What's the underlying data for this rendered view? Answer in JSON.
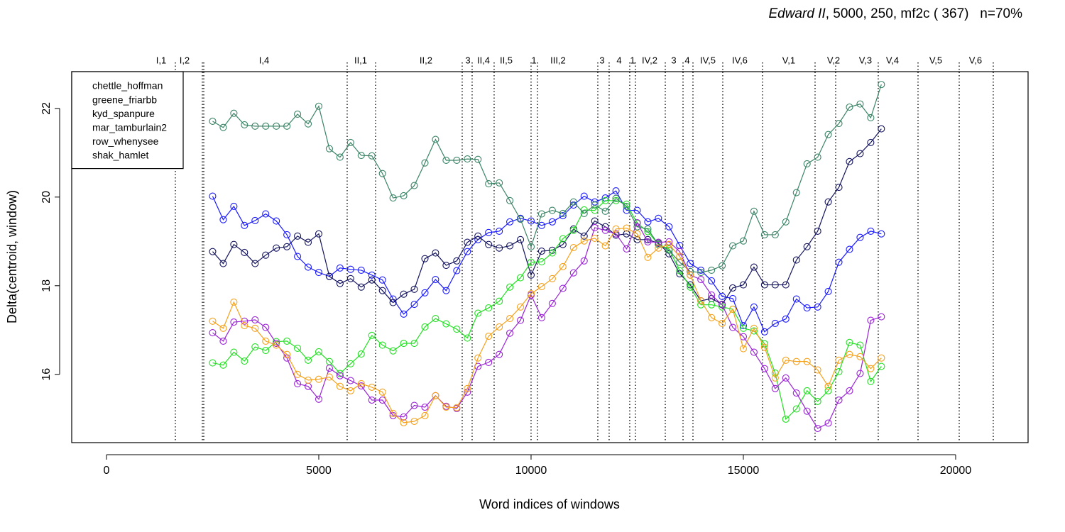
{
  "chart_data": {
    "type": "line",
    "title_italic": "Edward II",
    "title": ", 5000, 250, mf2c ( 367)   n=70%",
    "xlabel": "Word indices of windows",
    "ylabel": "Delta(centroid, window)",
    "xlim": [
      -819,
      21706
    ],
    "ylim": [
      14.46,
      22.83
    ],
    "xticks": [
      0,
      5000,
      10000,
      15000,
      20000
    ],
    "yticks": [
      16,
      18,
      20,
      22
    ],
    "legend": "topleft",
    "markers": "open-circle",
    "x": [
      2500,
      2750,
      3000,
      3250,
      3500,
      3750,
      4000,
      4250,
      4500,
      4750,
      5000,
      5250,
      5500,
      5750,
      6000,
      6250,
      6500,
      6750,
      7000,
      7250,
      7500,
      7750,
      8000,
      8250,
      8500,
      8750,
      9000,
      9250,
      9500,
      9750,
      10000,
      10250,
      10500,
      10750,
      11000,
      11250,
      11500,
      11750,
      12000,
      12250,
      12500,
      12750,
      13000,
      13250,
      13500,
      13750,
      14000,
      14250,
      14500,
      14750,
      15000,
      15250,
      15500,
      15750,
      16000,
      16250,
      16500,
      16750,
      17000,
      17250,
      17500,
      17750,
      18000,
      18250
    ],
    "series": [
      {
        "name": "chettle_hoffman",
        "color": "#1a1aff",
        "values": [
          20.02,
          19.49,
          19.79,
          19.36,
          19.47,
          19.62,
          19.46,
          19.15,
          18.66,
          18.42,
          18.3,
          18.21,
          18.4,
          18.37,
          18.35,
          18.24,
          18.13,
          17.7,
          17.36,
          17.58,
          17.84,
          18.14,
          17.89,
          18.34,
          18.77,
          19.04,
          19.2,
          19.23,
          19.44,
          19.52,
          19.46,
          19.36,
          19.44,
          19.58,
          19.82,
          20.02,
          19.89,
          19.98,
          20.14,
          19.7,
          19.7,
          19.44,
          19.52,
          19.33,
          18.91,
          18.5,
          18.35,
          18.11,
          17.76,
          17.71,
          17.1,
          17.52,
          16.96,
          17.15,
          17.25,
          17.7,
          17.5,
          17.52,
          17.87,
          18.53,
          18.82,
          19.09,
          19.23,
          19.17
        ]
      },
      {
        "name": "greene_friarbb",
        "color": "#14145e",
        "values": [
          18.77,
          18.5,
          18.93,
          18.75,
          18.5,
          18.69,
          18.85,
          18.88,
          19.12,
          18.98,
          19.17,
          18.21,
          18.05,
          18.16,
          17.97,
          18.13,
          17.89,
          17.62,
          17.81,
          17.92,
          18.61,
          18.74,
          18.46,
          18.56,
          18.98,
          19.12,
          18.93,
          18.85,
          18.9,
          19.04,
          18.24,
          18.78,
          18.8,
          18.93,
          19.28,
          19.12,
          19.46,
          19.33,
          19.14,
          19.17,
          19.04,
          19.04,
          18.96,
          18.72,
          18.27,
          18.02,
          17.66,
          17.71,
          17.58,
          17.95,
          18.02,
          18.42,
          18.02,
          18.02,
          18.02,
          18.58,
          18.88,
          19.23,
          19.89,
          20.22,
          20.8,
          20.98,
          21.23,
          21.54
        ]
      },
      {
        "name": "kyd_spanpure",
        "color": "#22e022",
        "values": [
          16.26,
          16.21,
          16.5,
          16.3,
          16.62,
          16.54,
          16.74,
          16.75,
          16.59,
          16.32,
          16.51,
          16.29,
          16.02,
          16.24,
          16.46,
          16.88,
          16.66,
          16.53,
          16.7,
          16.7,
          17.07,
          17.26,
          17.14,
          17.02,
          16.82,
          17.38,
          17.5,
          17.65,
          17.97,
          18.18,
          18.53,
          18.54,
          18.74,
          19.06,
          19.25,
          19.71,
          19.7,
          19.92,
          19.92,
          19.84,
          19.41,
          19.22,
          18.93,
          18.83,
          18.34,
          17.97,
          17.57,
          17.57,
          17.52,
          17.47,
          17.04,
          16.98,
          16.69,
          16.03,
          14.99,
          15.22,
          15.63,
          15.39,
          15.63,
          16.06,
          16.72,
          16.66,
          15.84,
          16.18
        ]
      },
      {
        "name": "mar_tamburlain2",
        "color": "#3a8466",
        "values": [
          21.71,
          21.57,
          21.89,
          21.63,
          21.6,
          21.6,
          21.6,
          21.6,
          21.87,
          21.65,
          22.05,
          21.09,
          20.9,
          21.23,
          20.94,
          20.93,
          20.53,
          19.98,
          20.03,
          20.26,
          20.77,
          21.3,
          20.83,
          20.83,
          20.86,
          20.85,
          20.3,
          20.32,
          19.92,
          19.5,
          18.88,
          19.62,
          19.7,
          19.63,
          19.89,
          19.63,
          19.82,
          19.68,
          19.97,
          19.79,
          19.33,
          19.28,
          18.93,
          18.8,
          18.53,
          18.32,
          18.3,
          18.35,
          18.45,
          18.9,
          19.01,
          19.68,
          19.15,
          19.15,
          19.44,
          20.1,
          20.75,
          20.9,
          21.41,
          21.66,
          22.03,
          22.1,
          21.79,
          22.54
        ]
      },
      {
        "name": "row_whenysee",
        "color": "#9a22d6",
        "values": [
          16.94,
          16.75,
          17.18,
          17.2,
          17.23,
          17.06,
          16.7,
          16.37,
          15.79,
          15.73,
          15.44,
          16.14,
          15.97,
          15.86,
          15.74,
          15.42,
          15.42,
          15.07,
          15.04,
          15.3,
          15.26,
          15.52,
          15.28,
          15.23,
          15.6,
          16.18,
          16.27,
          16.45,
          16.93,
          17.22,
          17.79,
          17.28,
          17.6,
          17.94,
          18.29,
          18.56,
          19.31,
          19.25,
          19.17,
          18.83,
          19.42,
          18.99,
          18.98,
          18.99,
          18.77,
          18.24,
          18.14,
          17.79,
          17.57,
          17.06,
          16.85,
          16.5,
          16.13,
          15.68,
          15.92,
          15.58,
          15.17,
          14.78,
          14.9,
          15.42,
          15.63,
          16.02,
          17.22,
          17.3
        ]
      },
      {
        "name": "shak_hamlet",
        "color": "#f5a11c",
        "values": [
          17.2,
          17.04,
          17.63,
          17.1,
          17.04,
          16.75,
          16.66,
          16.45,
          16.0,
          15.87,
          15.89,
          15.94,
          15.73,
          15.63,
          15.79,
          15.71,
          15.6,
          15.12,
          14.91,
          14.94,
          15.07,
          15.52,
          15.26,
          15.25,
          15.68,
          16.37,
          16.86,
          17.07,
          17.26,
          17.52,
          17.82,
          17.98,
          18.16,
          18.43,
          18.86,
          19.01,
          19.07,
          18.9,
          19.28,
          19.3,
          19.17,
          18.64,
          18.85,
          18.93,
          18.66,
          18.24,
          17.66,
          17.28,
          17.15,
          17.47,
          16.58,
          17.04,
          16.61,
          15.92,
          16.32,
          16.29,
          16.29,
          16.1,
          15.73,
          16.32,
          16.45,
          16.4,
          16.13,
          16.37
        ]
      }
    ],
    "scene_boundaries": [
      1622,
      2258,
      2291,
      5669,
      6338,
      8378,
      8612,
      9130,
      10000,
      10151,
      11572,
      11839,
      12324,
      12458,
      13161,
      13579,
      13813,
      14515,
      15452,
      16689,
      17174,
      18177,
      19114,
      20084,
      20886
    ],
    "scene_labels": [
      {
        "text": "I,1",
        "x": 1288
      },
      {
        "text": "I,2",
        "x": 1839
      },
      {
        "text": "I,4",
        "x": 3712
      },
      {
        "text": "II,1",
        "x": 5987
      },
      {
        "text": "II,2",
        "x": 7525
      },
      {
        "text": "3",
        "x": 8512
      },
      {
        "text": "II,4",
        "x": 8880
      },
      {
        "text": "II,5",
        "x": 9415
      },
      {
        "text": "1",
        "x": 10067
      },
      {
        "text": "III,2",
        "x": 10635
      },
      {
        "text": "3",
        "x": 11672
      },
      {
        "text": "4",
        "x": 12074
      },
      {
        "text": "1",
        "x": 12391
      },
      {
        "text": "IV,2",
        "x": 12793
      },
      {
        "text": "3",
        "x": 13361
      },
      {
        "text": "4",
        "x": 13679
      },
      {
        "text": "IV,5",
        "x": 14164
      },
      {
        "text": "IV,6",
        "x": 14916
      },
      {
        "text": "V,1",
        "x": 16070
      },
      {
        "text": "V,2",
        "x": 17124
      },
      {
        "text": "V,3",
        "x": 17876
      },
      {
        "text": "V,4",
        "x": 18512
      },
      {
        "text": "V,5",
        "x": 19532
      },
      {
        "text": "V,6",
        "x": 20468
      }
    ]
  }
}
